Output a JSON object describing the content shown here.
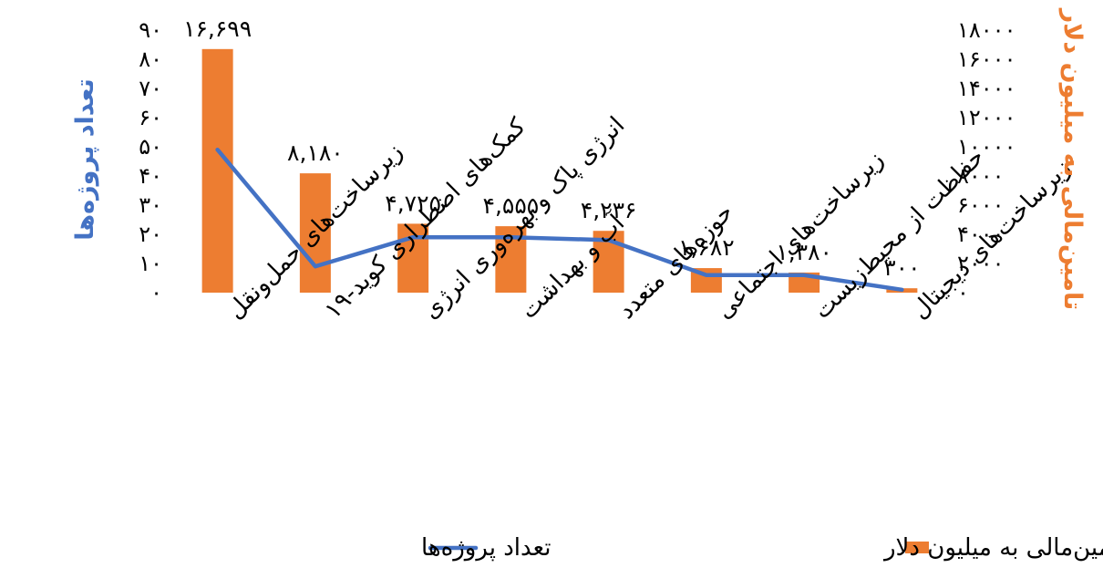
{
  "chart_data": {
    "type": "bar+line",
    "categories": [
      "زیرساخت‌های حمل‌ونقل",
      "کمک‌های اضطراری کوید-۱۹",
      "انرژی پاک و بهره‌وری انرژی",
      "آب و بهداشت",
      "حوزه‌های متعدد",
      "زیرساخت‌های اجتماعی",
      "حفاظت از محیط‌زیست",
      "زیرساخت‌های دیجیتال"
    ],
    "series": [
      {
        "name": "تامین‌مالی به میلیون دلار",
        "type": "bar",
        "axis": "right",
        "color": "#ED7D31",
        "values": [
          16699,
          8180,
          4725,
          4555,
          4236,
          1682,
          1380,
          300
        ],
        "labels": [
          "۱۶,۶۹۹",
          "۸,۱۸۰",
          "۴,۷۲۵",
          "۴,۵۵۵",
          "۴,۲۳۶",
          "۱,۶۸۲",
          "۱,۳۸۰",
          "۳۰۰"
        ]
      },
      {
        "name": "تعداد پروژه‌ها",
        "type": "line",
        "axis": "left",
        "color": "#4472C4",
        "values": [
          49,
          9,
          19,
          19,
          18,
          6,
          6,
          1
        ]
      }
    ],
    "left_axis": {
      "title": "تعداد پروژه‌ها",
      "range": [
        0,
        90
      ],
      "ticks": [
        "۰",
        "۱۰",
        "۲۰",
        "۳۰",
        "۴۰",
        "۵۰",
        "۶۰",
        "۷۰",
        "۸۰",
        "۹۰"
      ],
      "color": "#4472C4"
    },
    "right_axis": {
      "title": "تامین‌مالی به میلیون دلار",
      "range": [
        0,
        18000
      ],
      "ticks": [
        "۰",
        "۲۰۰۰",
        "۴۰۰۰",
        "۶۰۰۰",
        "۸۰۰۰",
        "۱۰۰۰۰",
        "۱۲۰۰۰",
        "۱۴۰۰۰",
        "۱۶۰۰۰",
        "۱۸۰۰۰"
      ],
      "color": "#ED7D31"
    },
    "grid": false,
    "legend_position": "bottom"
  }
}
